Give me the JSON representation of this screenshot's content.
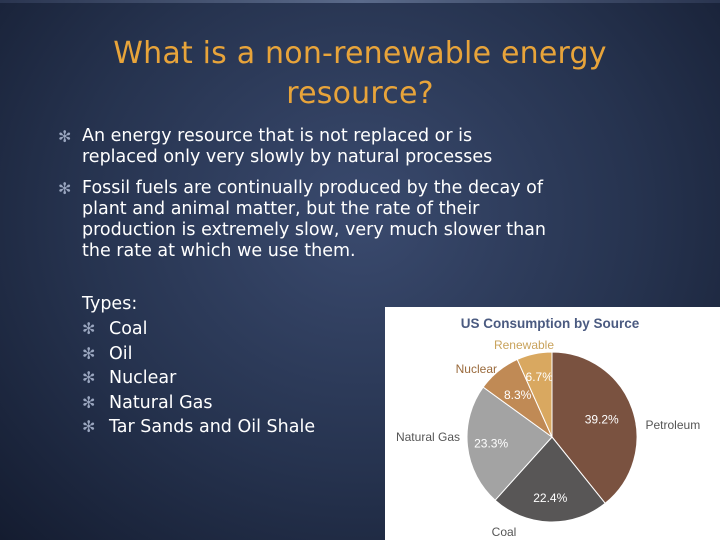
{
  "slide": {
    "title_line1": "What is a non-renewable energy",
    "title_line2": "resource?",
    "bullets": [
      {
        "line1": "An energy resource that is not replaced or is",
        "line2": "replaced only very slowly by natural processes"
      },
      {
        "line1": "Fossil fuels are continually produced by the decay of",
        "line2": "plant and animal matter, but the rate of their",
        "line3": "production is extremely slow, very much slower than",
        "line4": "the rate at which we use them."
      }
    ],
    "types_label": "Types:",
    "types": [
      "Coal",
      "Oil",
      "Nuclear",
      "Natural Gas",
      "Tar Sands and Oil Shale"
    ]
  },
  "chart_data": {
    "type": "pie",
    "title": "US Consumption by Source",
    "slices": [
      {
        "label": "Petroleum",
        "value": 39.2,
        "value_label": "39.2%",
        "color": "#7a5240"
      },
      {
        "label": "Coal",
        "value": 22.4,
        "value_label": "22.4%",
        "color": "#585656"
      },
      {
        "label": "Natural Gas",
        "value": 23.3,
        "value_label": "23.3%",
        "color": "#a3a3a3"
      },
      {
        "label": "Nuclear",
        "value": 8.3,
        "value_label": "8.3%",
        "color": "#c08a55"
      },
      {
        "label": "Renewable",
        "value": 6.7,
        "value_label": "6.7%",
        "color": "#d9a860"
      }
    ],
    "colors": {
      "title": "#4a5a80",
      "category_label": "#555555",
      "renewable_label": "#c9a35c",
      "nuclear_label": "#9a6a3c",
      "value_label": "#ffffff"
    }
  }
}
